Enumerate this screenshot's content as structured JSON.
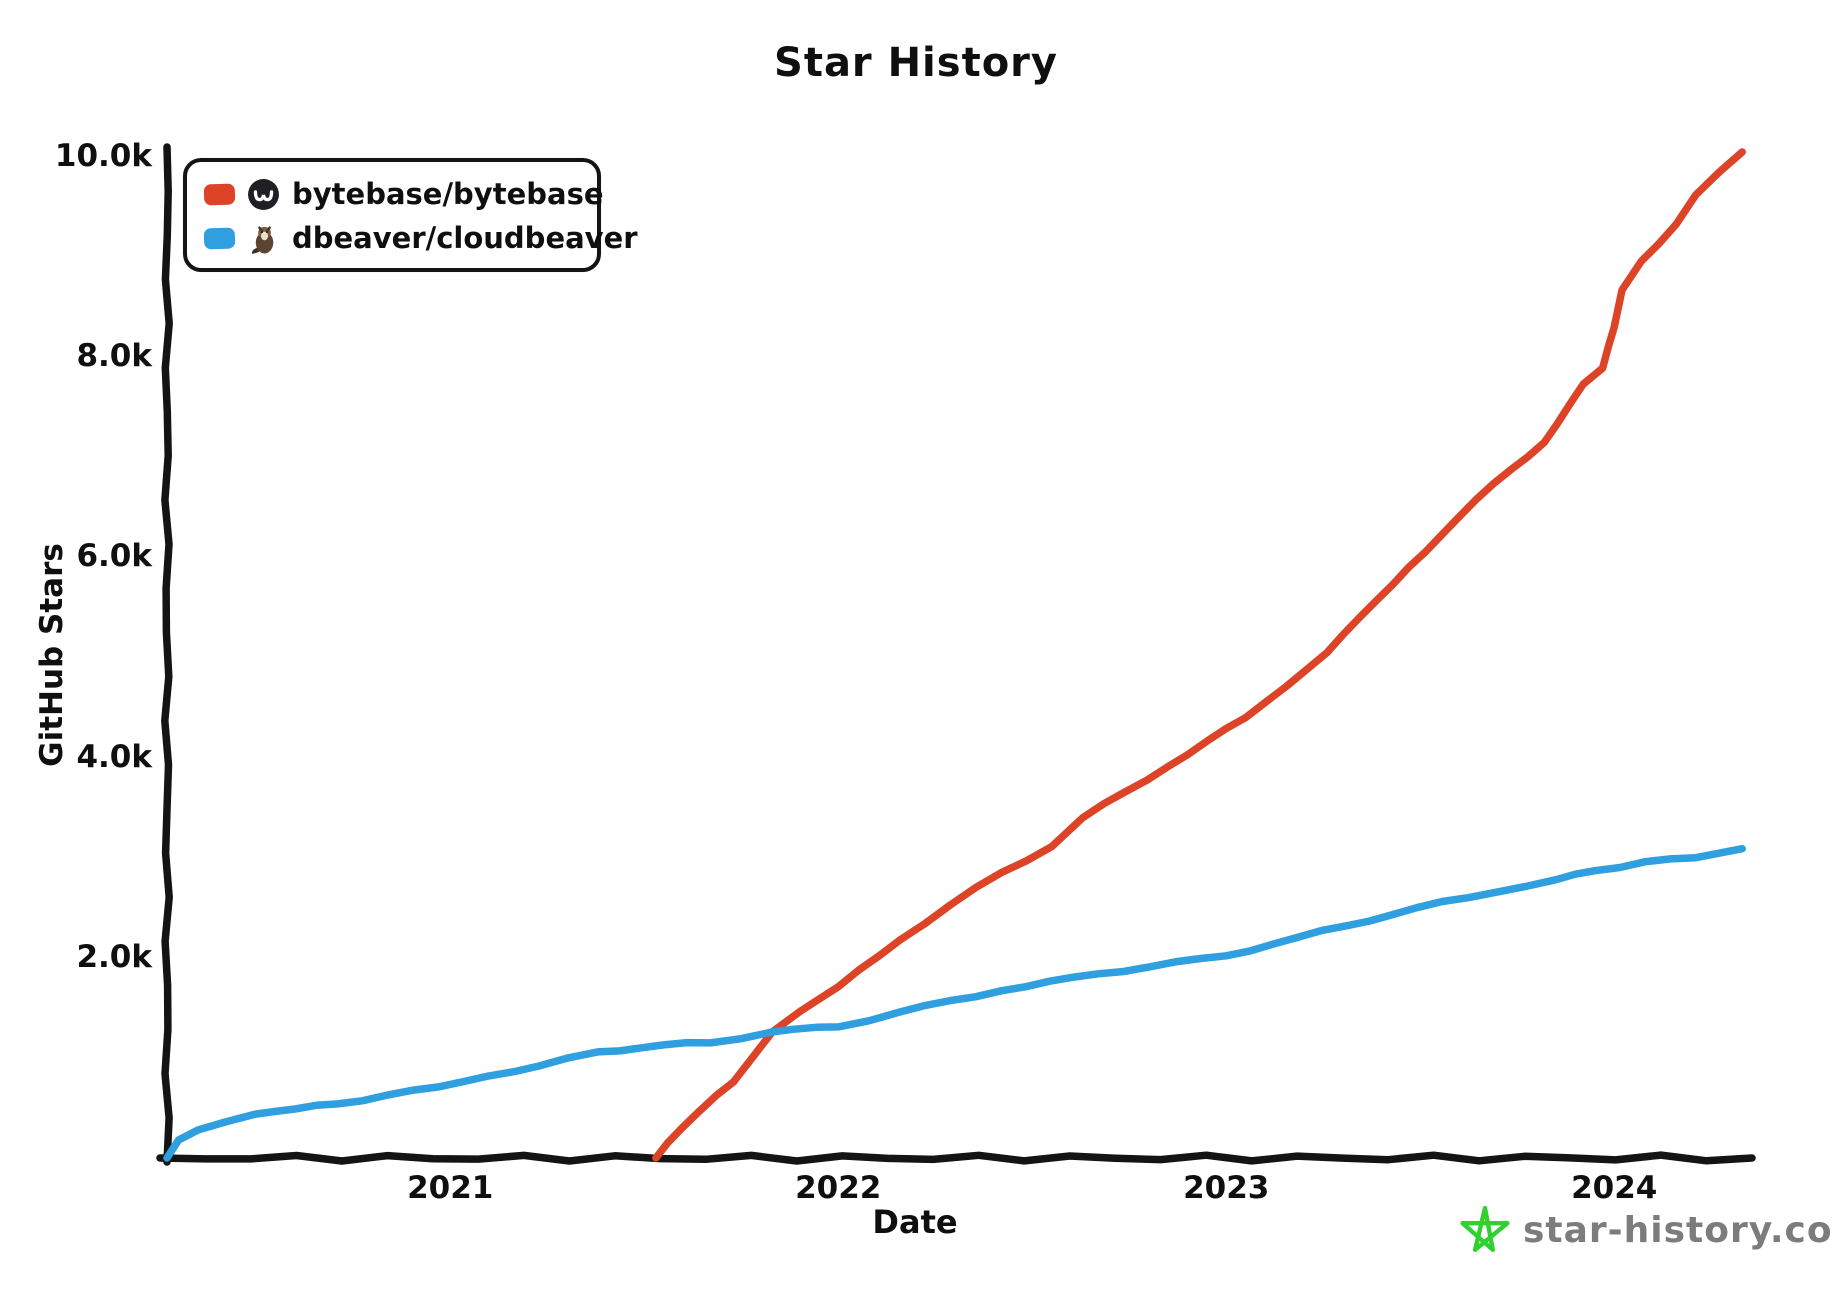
{
  "title": "Star History",
  "axes": {
    "x_label": "Date",
    "y_label": "GitHub Stars",
    "x_ticks": [
      {
        "value": 2021,
        "label": "2021"
      },
      {
        "value": 2022,
        "label": "2022"
      },
      {
        "value": 2023,
        "label": "2023"
      },
      {
        "value": 2024,
        "label": "2024"
      }
    ],
    "y_ticks": [
      {
        "value": 2000,
        "label": "2.0k"
      },
      {
        "value": 4000,
        "label": "4.0k"
      },
      {
        "value": 6000,
        "label": "6.0k"
      },
      {
        "value": 8000,
        "label": "8.0k"
      },
      {
        "value": 10000,
        "label": "10.0k"
      }
    ],
    "axis_color": "#141414"
  },
  "legend": {
    "items": [
      {
        "label": "bytebase/bytebase",
        "color": "#dd4327",
        "icon": "bytebase-avatar"
      },
      {
        "label": "dbeaver/cloudbeaver",
        "color": "#2f9fdf",
        "icon": "beaver-avatar"
      }
    ]
  },
  "watermark": {
    "text": "star-history.com",
    "star_color": "#2fd12f",
    "text_color": "#7c7c7c"
  },
  "chart_data": {
    "type": "line",
    "title": "Star History",
    "xlabel": "Date",
    "ylabel": "GitHub Stars",
    "xlim": [
      2020.27,
      2024.35
    ],
    "ylim": [
      0,
      10000
    ],
    "grid": false,
    "legend_position": "top-left",
    "x_tick_values": [
      2021,
      2022,
      2023,
      2024
    ],
    "y_tick_values": [
      2000,
      4000,
      6000,
      8000,
      10000
    ],
    "series": [
      {
        "name": "bytebase/bytebase",
        "color": "#dd4327",
        "points": [
          [
            2021.53,
            0
          ],
          [
            2021.56,
            150
          ],
          [
            2021.6,
            310
          ],
          [
            2021.64,
            460
          ],
          [
            2021.73,
            760
          ],
          [
            2021.78,
            1010
          ],
          [
            2021.83,
            1260
          ],
          [
            2021.9,
            1460
          ],
          [
            2022.0,
            1710
          ],
          [
            2022.16,
            2180
          ],
          [
            2022.29,
            2530
          ],
          [
            2022.42,
            2850
          ],
          [
            2022.55,
            3110
          ],
          [
            2022.63,
            3400
          ],
          [
            2022.85,
            3910
          ],
          [
            2023.05,
            4400
          ],
          [
            2023.26,
            5050
          ],
          [
            2023.47,
            5900
          ],
          [
            2023.69,
            6740
          ],
          [
            2023.82,
            7150
          ],
          [
            2023.92,
            7730
          ],
          [
            2023.97,
            7890
          ],
          [
            2024.0,
            8300
          ],
          [
            2024.02,
            8670
          ],
          [
            2024.07,
            8960
          ],
          [
            2024.16,
            9330
          ],
          [
            2024.21,
            9620
          ],
          [
            2024.33,
            10050
          ]
        ]
      },
      {
        "name": "dbeaver/cloudbeaver",
        "color": "#2f9fdf",
        "points": [
          [
            2020.27,
            0
          ],
          [
            2020.3,
            180
          ],
          [
            2020.35,
            280
          ],
          [
            2020.42,
            360
          ],
          [
            2020.5,
            440
          ],
          [
            2020.6,
            490
          ],
          [
            2020.71,
            540
          ],
          [
            2020.84,
            630
          ],
          [
            2020.97,
            710
          ],
          [
            2021.1,
            820
          ],
          [
            2021.23,
            920
          ],
          [
            2021.38,
            1060
          ],
          [
            2021.55,
            1130
          ],
          [
            2021.67,
            1150
          ],
          [
            2021.83,
            1260
          ],
          [
            2022.0,
            1310
          ],
          [
            2022.16,
            1460
          ],
          [
            2022.42,
            1670
          ],
          [
            2022.67,
            1840
          ],
          [
            2023.0,
            2020
          ],
          [
            2023.18,
            2200
          ],
          [
            2023.31,
            2320
          ],
          [
            2023.49,
            2500
          ],
          [
            2023.69,
            2650
          ],
          [
            2023.85,
            2780
          ],
          [
            2023.95,
            2870
          ],
          [
            2024.08,
            2960
          ],
          [
            2024.21,
            3000
          ],
          [
            2024.33,
            3090
          ]
        ]
      }
    ]
  }
}
